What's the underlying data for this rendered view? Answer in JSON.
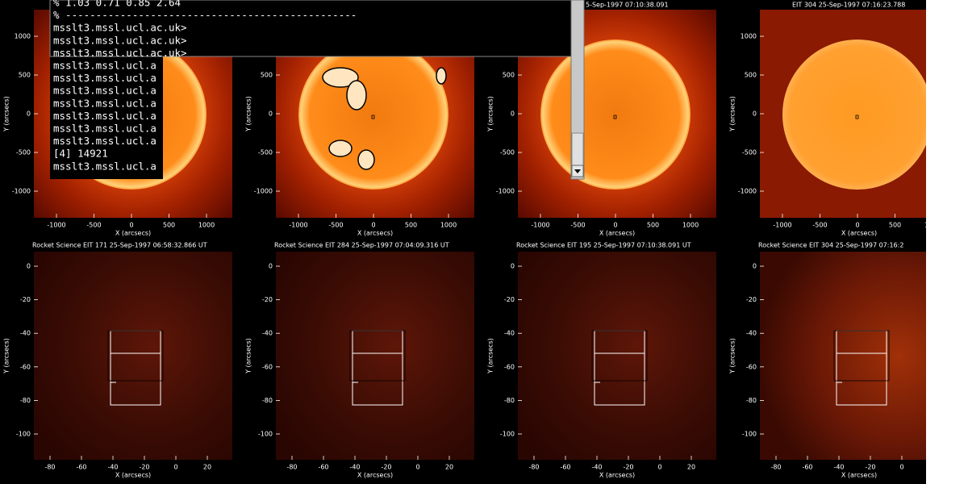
{
  "axes": {
    "x_label": "X (arcsecs)",
    "y_label": "Y (arcsecs)"
  },
  "top_axes": {
    "xticks": [
      "-1000",
      "-500",
      "0",
      "500",
      "1000"
    ],
    "yticks": [
      "1000",
      "500",
      "0",
      "-500",
      "-1000"
    ]
  },
  "bottom_axes": {
    "xticks": [
      "-80",
      "-60",
      "-40",
      "-20",
      "0",
      "20"
    ],
    "yticks": [
      "0",
      "-20",
      "-40",
      "-60",
      "-80",
      "-100"
    ]
  },
  "top_panels": [
    {
      "id": "eit171"
    },
    {
      "id": "eit284"
    },
    {
      "id": "eit195",
      "title": "5-Sep-1997 07:10:38.091"
    },
    {
      "id": "eit304",
      "title": "EIT 304 25-Sep-1997 07:16:23.788"
    }
  ],
  "bottom_panels": [
    {
      "title": "Rocket Science EIT 171 25-Sep-1997 06:58:32.866 UT"
    },
    {
      "title": "Rocket Science EIT 284 25-Sep-1997 07:04:09.316 UT"
    },
    {
      "title": "Rocket Science EIT 195 25-Sep-1997 07:10:38.091 UT"
    },
    {
      "title": "Rocket Science EIT 304 25-Sep-1997 07:16:2"
    }
  ],
  "terminal": {
    "lines": [
      "% 1.03 0.71 0.85 2.64",
      "%  ------------------------------------------------",
      "msslt3.mssl.ucl.ac.uk>",
      "msslt3.mssl.ucl.ac.uk>",
      "msslt3.mssl.ucl.ac.uk>",
      "msslt3.mssl.ucl.a",
      "msslt3.mssl.ucl.a",
      "msslt3.mssl.ucl.a",
      "msslt3.mssl.ucl.a",
      "msslt3.mssl.ucl.a",
      "msslt3.mssl.ucl.a",
      "msslt3.mssl.ucl.a",
      "[4]  14921",
      "msslt3.mssl.ucl.a"
    ]
  }
}
